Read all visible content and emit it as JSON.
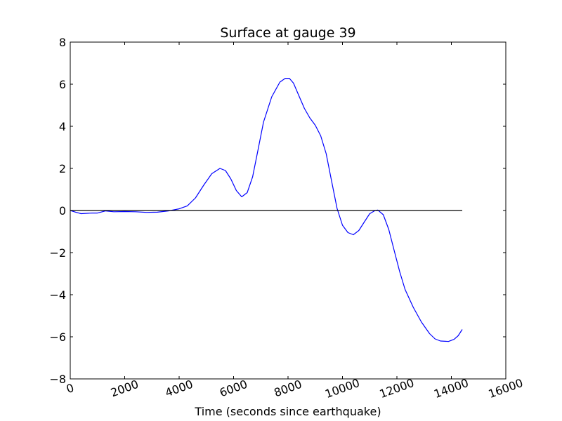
{
  "chart_data": {
    "type": "line",
    "title": "Surface at gauge 39",
    "xlabel": "Time (seconds since earthquake)",
    "ylabel": "",
    "xlim": [
      0,
      16000
    ],
    "ylim": [
      -8,
      8
    ],
    "x_ticks": [
      0,
      2000,
      4000,
      6000,
      8000,
      10000,
      12000,
      14000,
      16000
    ],
    "x_tick_labels": [
      "0",
      "2000",
      "4000",
      "6000",
      "8000",
      "10000",
      "12000",
      "14000",
      "16000"
    ],
    "y_ticks": [
      -8,
      -6,
      -4,
      -2,
      0,
      2,
      4,
      6,
      8
    ],
    "y_tick_labels": [
      "−8",
      "−6",
      "−4",
      "−2",
      "0",
      "2",
      "4",
      "6",
      "8"
    ],
    "grid": false,
    "series": [
      {
        "color": "#0000ff",
        "points": [
          [
            0,
            0.0
          ],
          [
            200,
            -0.08
          ],
          [
            400,
            -0.15
          ],
          [
            800,
            -0.12
          ],
          [
            1000,
            -0.12
          ],
          [
            1300,
            -0.02
          ],
          [
            1600,
            -0.06
          ],
          [
            2000,
            -0.05
          ],
          [
            2400,
            -0.06
          ],
          [
            2800,
            -0.09
          ],
          [
            3200,
            -0.08
          ],
          [
            3600,
            -0.02
          ],
          [
            4000,
            0.08
          ],
          [
            4300,
            0.22
          ],
          [
            4600,
            0.6
          ],
          [
            4900,
            1.2
          ],
          [
            5200,
            1.75
          ],
          [
            5500,
            2.0
          ],
          [
            5700,
            1.9
          ],
          [
            5900,
            1.5
          ],
          [
            6100,
            0.95
          ],
          [
            6300,
            0.65
          ],
          [
            6500,
            0.85
          ],
          [
            6700,
            1.6
          ],
          [
            6900,
            2.9
          ],
          [
            7100,
            4.2
          ],
          [
            7400,
            5.4
          ],
          [
            7700,
            6.1
          ],
          [
            7900,
            6.28
          ],
          [
            8050,
            6.28
          ],
          [
            8200,
            6.05
          ],
          [
            8400,
            5.45
          ],
          [
            8600,
            4.85
          ],
          [
            8800,
            4.4
          ],
          [
            9000,
            4.05
          ],
          [
            9200,
            3.55
          ],
          [
            9400,
            2.7
          ],
          [
            9600,
            1.4
          ],
          [
            9800,
            0.1
          ],
          [
            10000,
            -0.7
          ],
          [
            10200,
            -1.05
          ],
          [
            10400,
            -1.15
          ],
          [
            10600,
            -0.95
          ],
          [
            10800,
            -0.55
          ],
          [
            11000,
            -0.15
          ],
          [
            11200,
            0.0
          ],
          [
            11300,
            0.02
          ],
          [
            11500,
            -0.2
          ],
          [
            11700,
            -0.9
          ],
          [
            11900,
            -1.9
          ],
          [
            12100,
            -2.9
          ],
          [
            12300,
            -3.75
          ],
          [
            12600,
            -4.6
          ],
          [
            12900,
            -5.3
          ],
          [
            13200,
            -5.85
          ],
          [
            13400,
            -6.1
          ],
          [
            13600,
            -6.2
          ],
          [
            13900,
            -6.22
          ],
          [
            14100,
            -6.12
          ],
          [
            14250,
            -5.95
          ],
          [
            14400,
            -5.65
          ]
        ]
      },
      {
        "color": "#000000",
        "points": [
          [
            0,
            0
          ],
          [
            14400,
            0
          ]
        ]
      }
    ]
  }
}
